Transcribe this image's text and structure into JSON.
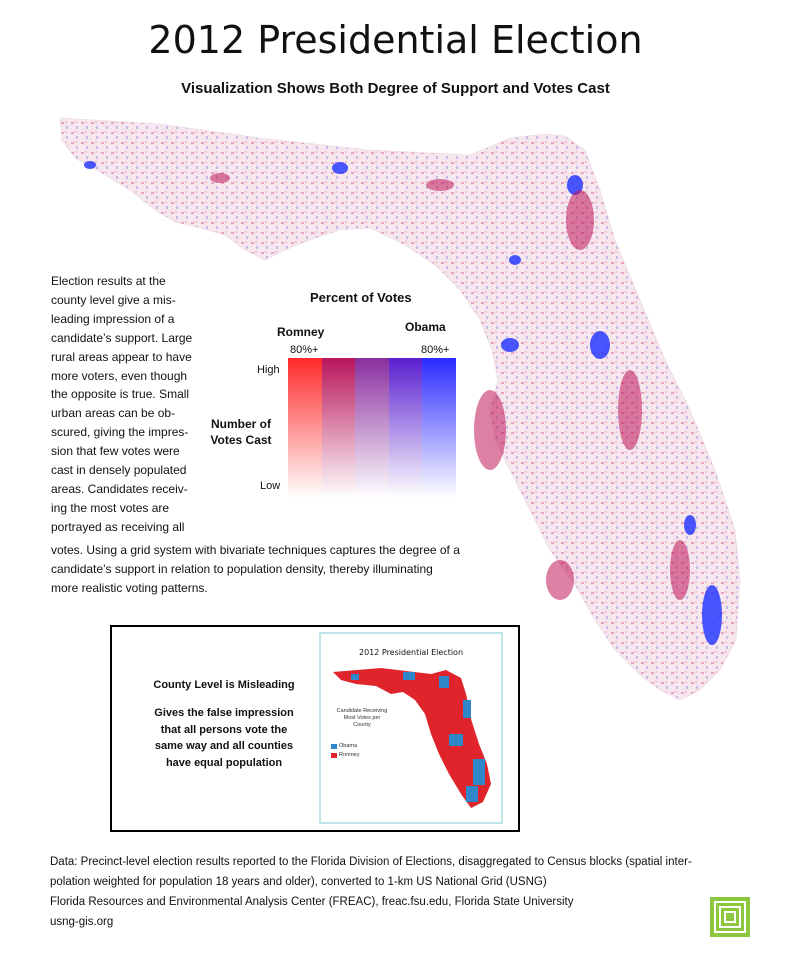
{
  "header": {
    "title": "2012 Presidential Election",
    "subtitle": "Visualization Shows  Both Degree of Support and Votes Cast"
  },
  "description": {
    "lines": [
      "Election results at the",
      "county level  give a  mis-",
      "leading impression  of a",
      "candidate’s support. Large",
      "rural areas appear to have",
      "more voters, even though",
      "the opposite is true. Small",
      "urban areas can be ob-",
      "scured, giving the impres-",
      "sion that few votes were",
      "cast in densely populated",
      "areas.  Candidates receiv-",
      "ing the most votes are",
      "portrayed as receiving all"
    ],
    "wide_lines": [
      "votes. Using a grid system with bivariate techniques captures the degree of a",
      "candidate’s support in relation to population density,   thereby illuminating",
      "more realistic voting patterns."
    ]
  },
  "legend": {
    "title": "Percent of Votes",
    "romney": "Romney",
    "obama": "Obama",
    "romney_pct": "80%+",
    "obama_pct": "80%+",
    "high": "High",
    "low": "Low",
    "votes_line1": "Number of",
    "votes_line2": "Votes Cast",
    "colors": [
      "#ff2a2a",
      "#b8155a",
      "#8a2f9e",
      "#5a1fd0",
      "#2a2aff"
    ]
  },
  "inset": {
    "heading": "County Level is Misleading",
    "body_lines": [
      "Gives the false impression",
      "that all persons vote the",
      "same way and all counties",
      "have equal population"
    ],
    "map_title": "2012 Presidential Election",
    "caption_lines": [
      "Candidate Receiving",
      "Most Votes per",
      "County"
    ],
    "legend_obama": "Obama",
    "legend_romney": "Romney",
    "obama_color": "#2f86c9",
    "romney_color": "#e0242c"
  },
  "footer": {
    "lines": [
      "Data: Precinct-level election results reported to the Florida Division of Elections, disaggregated to Census blocks (spatial inter-",
      "polation weighted for population 18 years and older), converted to 1-km US National Grid (USNG)",
      "Florida Resources and Environmental Analysis Center (FREAC), freac.fsu.edu, Florida State University",
      "usng-gis.org"
    ]
  },
  "logo": {
    "name": "usng-logo",
    "color": "#8dc63f"
  }
}
